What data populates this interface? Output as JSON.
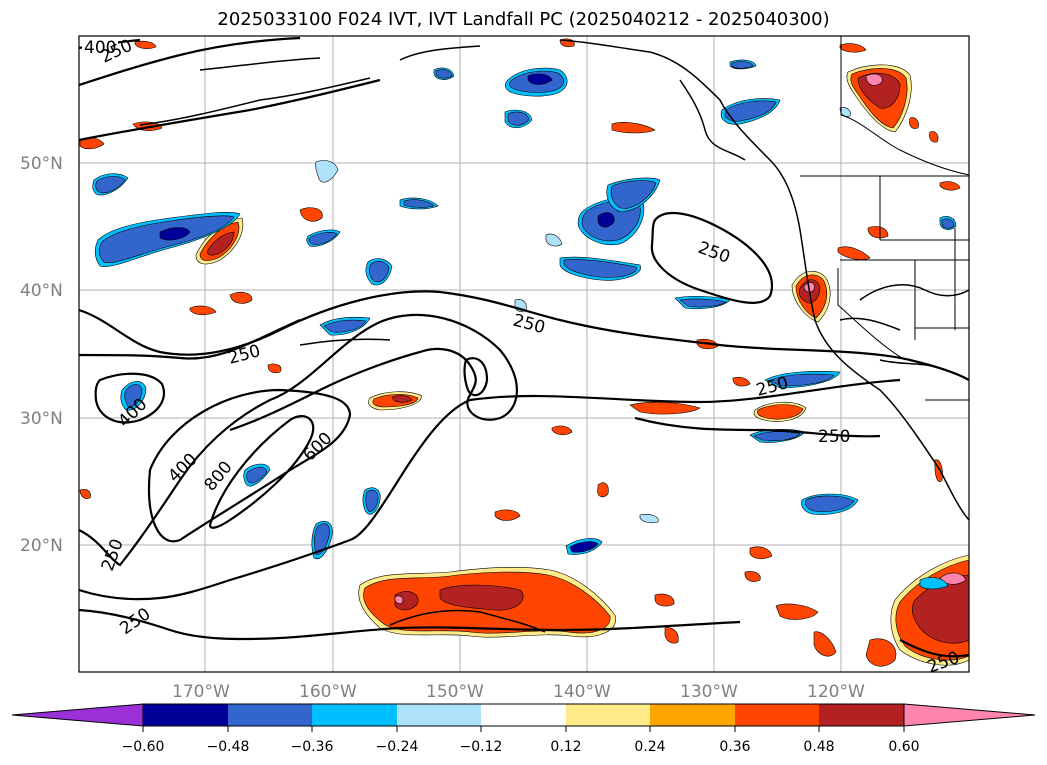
{
  "title": "2025033100 F024 IVT, IVT Landfall PC (2025040212 - 2025040300)",
  "map": {
    "lat_labels": [
      {
        "lat": 50,
        "text": "50°N"
      },
      {
        "lat": 40,
        "text": "40°N"
      },
      {
        "lat": 30,
        "text": "30°N"
      },
      {
        "lat": 20,
        "text": "20°N"
      }
    ],
    "lon_labels": [
      {
        "lon": -170,
        "text": "170°W"
      },
      {
        "lon": -160,
        "text": "160°W"
      },
      {
        "lon": -150,
        "text": "150°W"
      },
      {
        "lon": -140,
        "text": "140°W"
      },
      {
        "lon": -130,
        "text": "130°W"
      },
      {
        "lon": -120,
        "text": "120°W"
      }
    ],
    "contour_labels": [
      "400",
      "250",
      "250",
      "250",
      "250",
      "250",
      "400",
      "400",
      "800",
      "600",
      "250",
      "250",
      "250"
    ]
  },
  "colorbar": {
    "colors": [
      "#9b30d9",
      "#000099",
      "#3366cc",
      "#00bfff",
      "#aee2fa",
      "#ffffff",
      "#ffeb8a",
      "#ffa500",
      "#ff4500",
      "#b22222",
      "#ff85b0"
    ],
    "ticks": [
      "−0.60",
      "−0.48",
      "−0.36",
      "−0.24",
      "−0.12",
      "0.12",
      "0.24",
      "0.36",
      "0.48",
      "0.60"
    ]
  }
}
